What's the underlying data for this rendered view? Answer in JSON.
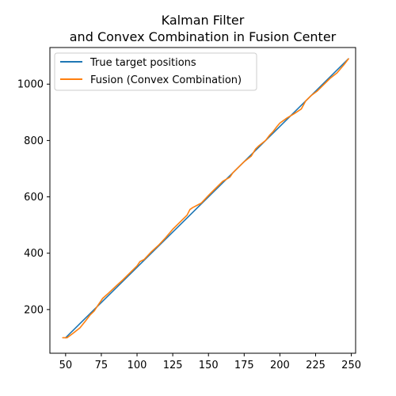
{
  "chart_data": {
    "type": "line",
    "title": [
      "Kalman Filter",
      "and Convex Combination in Fusion Center"
    ],
    "xlabel": "",
    "ylabel": "",
    "xlim": [
      39,
      253
    ],
    "ylim": [
      45,
      1130
    ],
    "xticks": [
      50,
      75,
      100,
      125,
      150,
      175,
      200,
      225,
      250
    ],
    "yticks": [
      200,
      400,
      600,
      800,
      1000
    ],
    "grid": false,
    "legend": "top-left",
    "series": [
      {
        "name": "True target positions",
        "color": "#1f77b4",
        "x": [
          50,
          248
        ],
        "y": [
          100,
          1090
        ]
      },
      {
        "name": "Fusion (Convex Combination)",
        "color": "#ff7f0e",
        "x": [
          48,
          51,
          55,
          60,
          64,
          67,
          70,
          73,
          76,
          80,
          85,
          90,
          95,
          100,
          102,
          105,
          110,
          115,
          120,
          125,
          130,
          135,
          137,
          139,
          142,
          145,
          150,
          155,
          160,
          165,
          167,
          170,
          175,
          180,
          183,
          185,
          190,
          193,
          195,
          198,
          200,
          205,
          210,
          215,
          218,
          222,
          226,
          230,
          235,
          240,
          245,
          248
        ],
        "y": [
          100,
          100,
          115,
          135,
          160,
          180,
          195,
          218,
          240,
          258,
          282,
          305,
          330,
          355,
          370,
          378,
          405,
          428,
          455,
          485,
          510,
          535,
          555,
          562,
          570,
          578,
          605,
          630,
          655,
          670,
          685,
          700,
          725,
          745,
          770,
          780,
          800,
          820,
          830,
          850,
          862,
          880,
          895,
          912,
          940,
          960,
          975,
          995,
          1020,
          1040,
          1070,
          1090
        ]
      }
    ]
  }
}
